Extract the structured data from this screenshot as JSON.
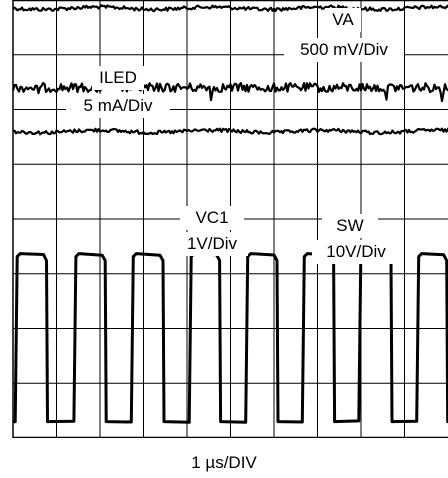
{
  "chart_data": {
    "type": "line",
    "title": "",
    "xlabel": "1 µs/DIV",
    "ylabel": "",
    "grid": true,
    "divisions": {
      "x": 10,
      "y": 8
    },
    "xlim": [
      0,
      10
    ],
    "ylim": [
      0,
      8
    ],
    "x_units": "divisions",
    "y_units": "divisions",
    "channels": [
      {
        "name": "VA",
        "scale": "500 mV/Div",
        "level_div": 7.85,
        "kind": "dc-noisy"
      },
      {
        "name": "ILED",
        "scale": "5 mA/Div",
        "level_div": 6.4,
        "kind": "dc-noisy-ripple"
      },
      {
        "name": "VC1",
        "scale": "1V/Div",
        "level_div": 5.6,
        "kind": "dc-noisy"
      },
      {
        "name": "SW",
        "scale": "10V/Div",
        "low_div": 0.3,
        "high_div": 3.35,
        "kind": "square-wave",
        "rising_edges_div": [
          0.05,
          1.4,
          2.72,
          4.05,
          5.35,
          6.65,
          7.95,
          9.28
        ],
        "falling_edges_div": [
          0.7,
          2.05,
          3.38,
          4.68,
          6.0,
          7.3,
          8.62,
          9.9
        ]
      }
    ]
  },
  "labels": {
    "va_name": "VA",
    "va_scale": "500 mV/Div",
    "iled_name": "ILED",
    "iled_scale": "5 mA/Div",
    "vc1_name": "VC1",
    "vc1_scale": "1V/Div",
    "sw_name": "SW",
    "sw_scale": "10V/Div",
    "timebase": "1 µs/DIV"
  },
  "colors": {
    "trace": "#000000",
    "grid": "#000000",
    "background": "#ffffff"
  }
}
